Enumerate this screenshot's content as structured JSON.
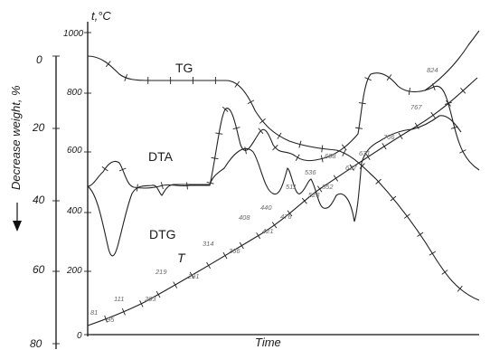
{
  "chart_data": {
    "type": "line",
    "xlabel": "Time",
    "ylabel_left": "Decrease weight, %",
    "ylabel_right": "t,°C",
    "weight_ticks": [
      "0",
      "20",
      "40",
      "60",
      "80"
    ],
    "temp_ticks": [
      "0",
      "200",
      "400",
      "600",
      "800",
      "1000"
    ],
    "curve_labels": {
      "tg": "TG",
      "dta": "DTA",
      "dtg": "DTG",
      "t": "T"
    },
    "temperature_points": [
      "81",
      "95",
      "111",
      "203",
      "219",
      "291",
      "314",
      "366",
      "408",
      "421",
      "440",
      "476",
      "511",
      "523",
      "536",
      "552",
      "608",
      "627",
      "631",
      "706",
      "767",
      "824"
    ],
    "series": [
      {
        "name": "TG",
        "x": [
          0,
          5,
          10,
          15,
          20,
          30,
          35,
          40,
          43,
          47,
          50,
          55,
          60,
          65,
          70,
          75,
          80,
          85,
          90,
          95,
          100
        ],
        "y": [
          0,
          0.5,
          2,
          4.5,
          5.5,
          5.6,
          5.6,
          5.7,
          7,
          12,
          18,
          22,
          25,
          26.5,
          27.5,
          29,
          32,
          38,
          48,
          60,
          68
        ]
      },
      {
        "name": "T",
        "x": [
          0,
          10,
          20,
          30,
          40,
          50,
          55,
          60,
          70,
          80,
          90,
          100
        ],
        "y": [
          30,
          120,
          215,
          300,
          380,
          460,
          500,
          540,
          620,
          720,
          830,
          940
        ]
      }
    ]
  }
}
